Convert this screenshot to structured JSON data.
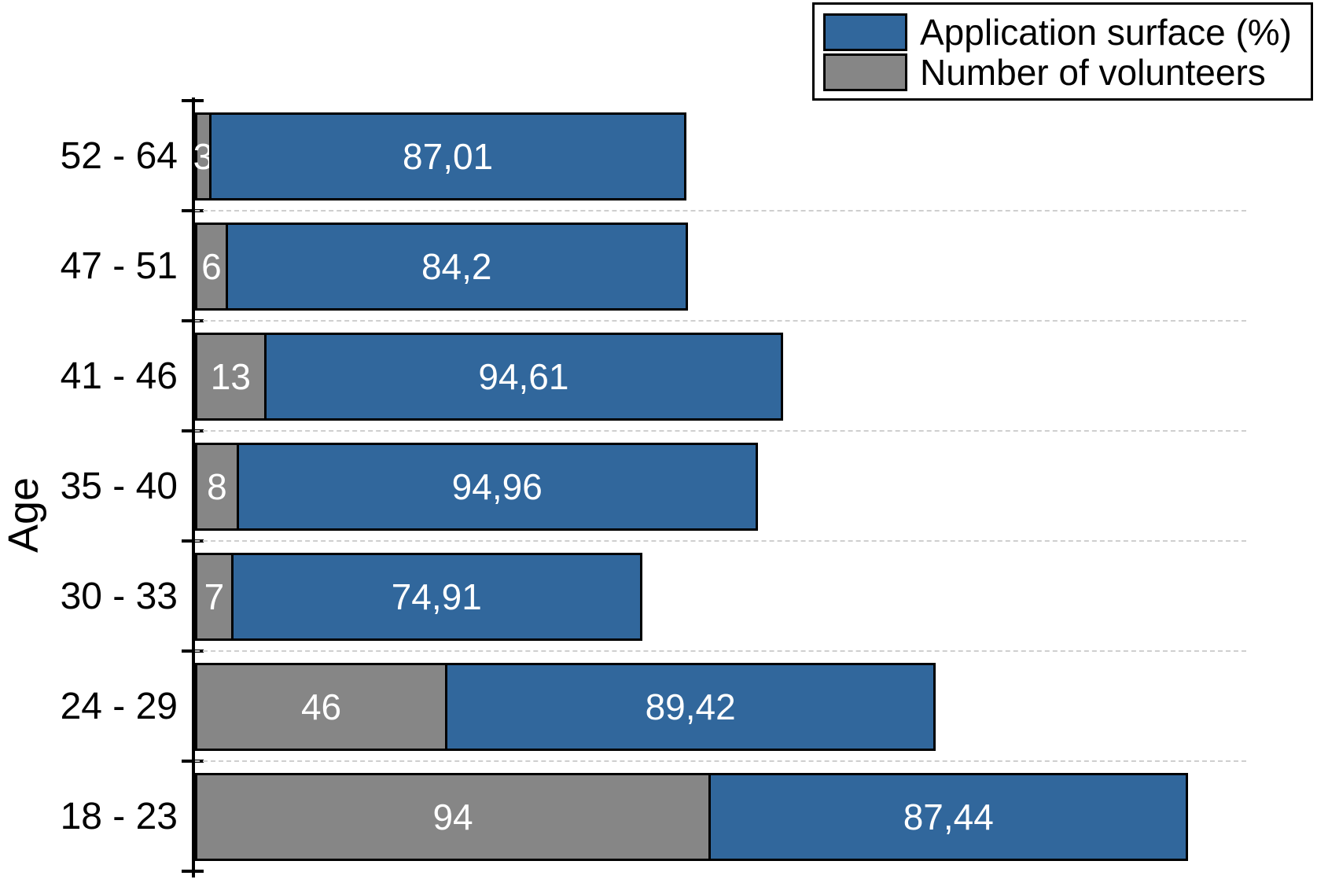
{
  "chart_data": {
    "type": "bar",
    "orientation": "horizontal",
    "stacked": true,
    "title": "",
    "xlabel": "",
    "ylabel": "Age",
    "legend_position": "top-right",
    "grid": "dashed horizontal separators between category rows, no x-axis line or x tick labels shown",
    "categories": [
      "52 - 64",
      "47 - 51",
      "41 - 46",
      "35 - 40",
      "30 - 33",
      "24 - 29",
      "18 - 23"
    ],
    "series": [
      {
        "name": "Application surface (%)",
        "color": "#31679C",
        "values": [
          87.01,
          84.2,
          94.61,
          94.96,
          74.91,
          89.42,
          87.44
        ],
        "value_labels": [
          "87,01",
          "84,2",
          "94,61",
          "94,96",
          "74,91",
          "89,42",
          "87,44"
        ]
      },
      {
        "name": "Number of volunteers",
        "color": "#868686",
        "values": [
          3,
          6,
          13,
          8,
          7,
          46,
          94
        ],
        "value_labels": [
          "3",
          "6",
          "13",
          "8",
          "7",
          "46",
          "94"
        ]
      }
    ],
    "value_label_color": "#ffffff",
    "axis_color": "#000000",
    "bar_border_color": "#000000",
    "gridline_color": "#cfcfcf"
  }
}
